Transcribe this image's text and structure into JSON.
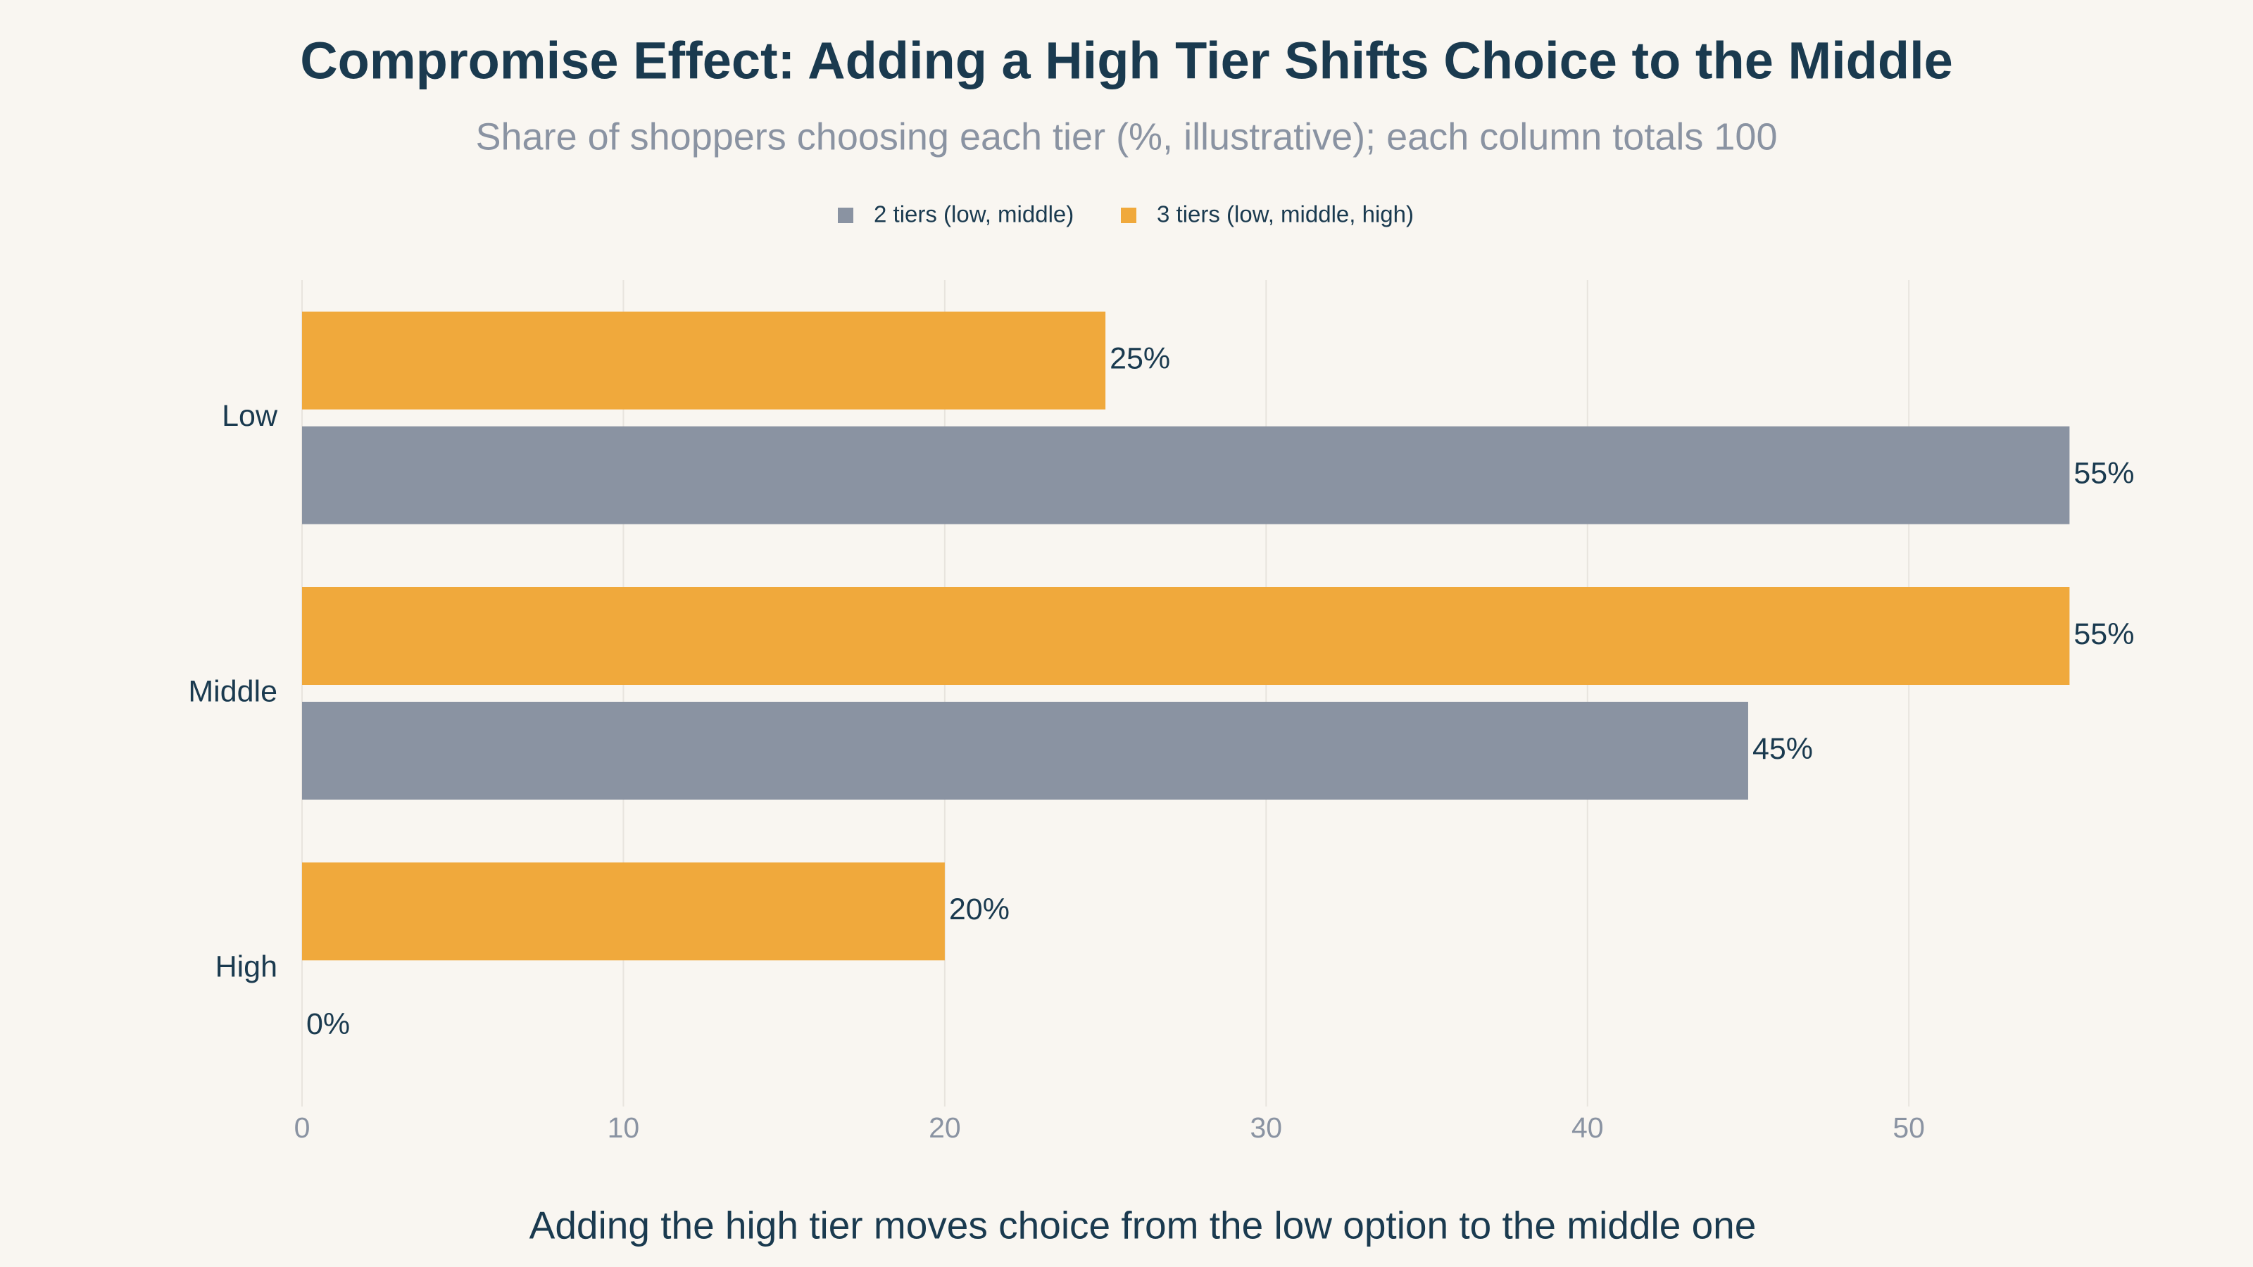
{
  "chart_data": {
    "type": "hbar",
    "title": "Compromise Effect: Adding a High Tier Shifts Choice to the Middle",
    "subtitle": "Share of shoppers choosing each tier (%, illustrative); each column totals 100",
    "x_label": "Adding the high tier moves choice from the low option to the middle one",
    "categories": [
      "Low",
      "Middle",
      "High"
    ],
    "series": [
      {
        "name": "2 tiers (low, middle)",
        "color": "#8a93a2",
        "values": [
          55,
          45,
          0
        ],
        "value_labels": [
          "55%",
          "45%",
          "0%"
        ]
      },
      {
        "name": "3 tiers (low, middle, high)",
        "color": "#f0a93c",
        "values": [
          25,
          55,
          20
        ],
        "value_labels": [
          "25%",
          "55%",
          "20%"
        ]
      }
    ],
    "xlim": [
      0,
      56.7
    ],
    "xticks": [
      0,
      10,
      20,
      30,
      40,
      50
    ],
    "grid": true,
    "legend": "top"
  }
}
